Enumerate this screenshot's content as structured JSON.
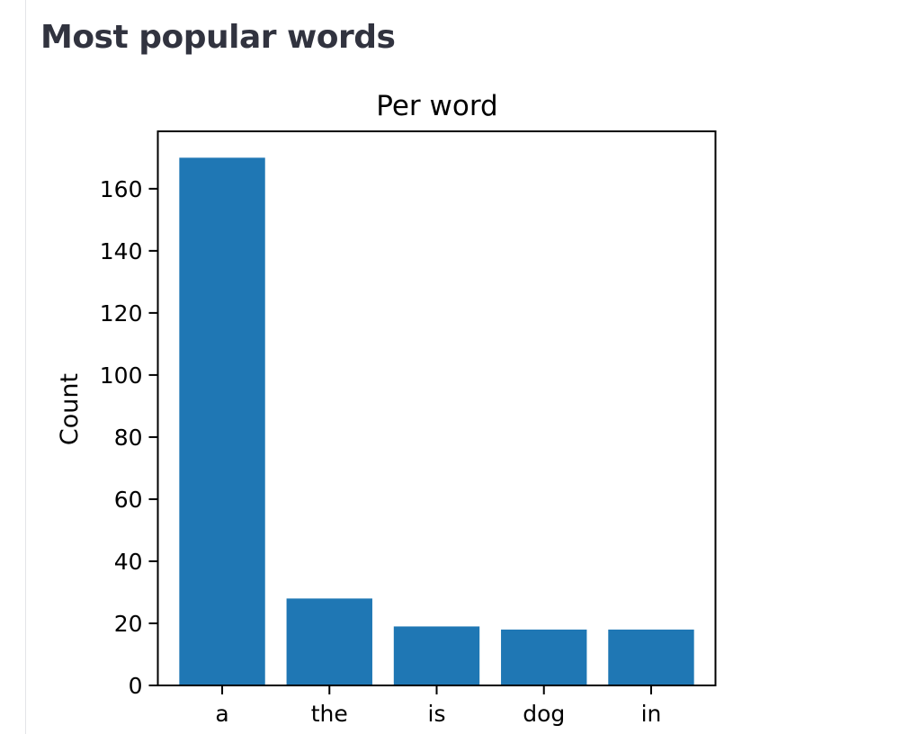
{
  "header": {
    "title": "Most popular words"
  },
  "chart_data": {
    "type": "bar",
    "title": "Per word",
    "xlabel": "",
    "ylabel": "Count",
    "categories": [
      "a",
      "the",
      "is",
      "dog",
      "in"
    ],
    "values": [
      170,
      28,
      19,
      18,
      18
    ],
    "ylim": [
      0,
      178.5
    ],
    "yticks": [
      0,
      20,
      40,
      60,
      80,
      100,
      120,
      140,
      160
    ],
    "bar_color": "#1f77b4",
    "grid": false,
    "legend": "none"
  }
}
